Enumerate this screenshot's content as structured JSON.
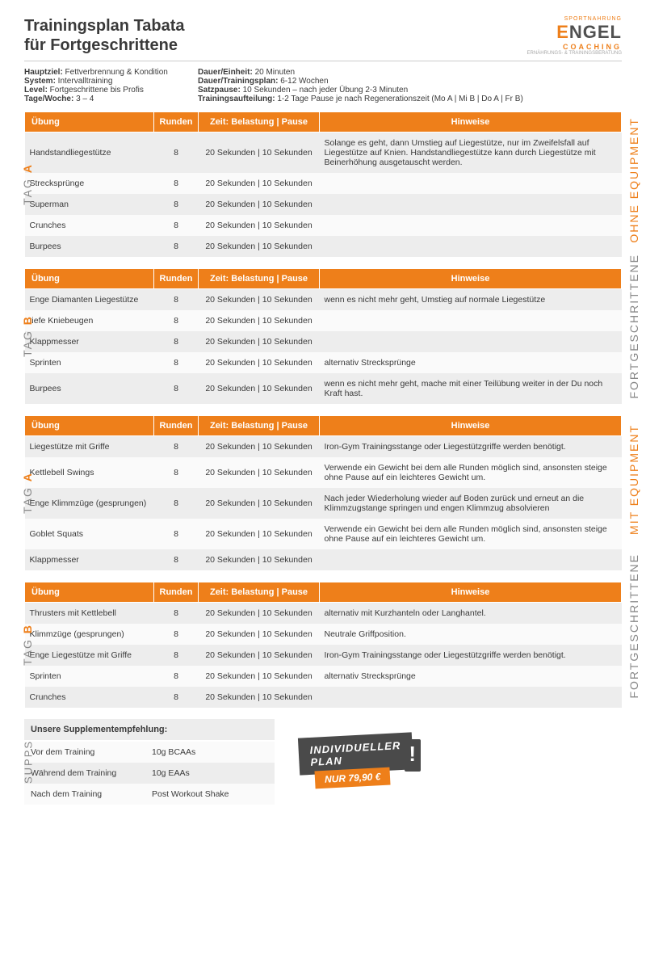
{
  "title_line1": "Trainingsplan Tabata",
  "title_line2": "für Fortgeschrittene",
  "logo": {
    "top": "SPORTNAHRUNG",
    "e": "E",
    "rest": "NGEL",
    "sub": "COACHING",
    "tag": "ERNÄHRUNGS- & TRAININGSBERATUNG"
  },
  "meta_left": [
    {
      "label": "Hauptziel:",
      "value": " Fettverbrennung & Kondition"
    },
    {
      "label": "System:",
      "value": " Intervalltraining"
    },
    {
      "label": "Level:",
      "value": " Fortgeschrittene bis Profis"
    },
    {
      "label": "Tage/Woche:",
      "value": " 3 – 4"
    }
  ],
  "meta_right": [
    {
      "label": "Dauer/Einheit:",
      "value": " 20 Minuten"
    },
    {
      "label": "Dauer/Trainingsplan:",
      "value": " 6-12 Wochen"
    },
    {
      "label": "Satzpause:",
      "value": " 10 Sekunden – nach jeder Übung 2-3 Minuten"
    },
    {
      "label": "Trainingsaufteilung:",
      "value": " 1-2 Tage Pause je nach Regenerationszeit  (Mo A | Mi B | Do A | Fr B)"
    }
  ],
  "columns": {
    "ex": "Übung",
    "rd": "Runden",
    "tm": "Zeit: Belastung | Pause",
    "hn": "Hinweise"
  },
  "side_labels": {
    "tag": "TAG",
    "fort": "FORTGESCHRITTENE",
    "ohne": "OHNE EQUIPMENT",
    "mit": "MIT EQUIPMENT",
    "supps": "SUPPS"
  },
  "tables": {
    "ohne_a": [
      {
        "ex": "Handstandliegestütze",
        "rd": "8",
        "tm": "20 Sekunden  | 10 Sekunden",
        "hn": "Solange es geht, dann Umstieg auf Liegestütze, nur im Zweifelsfall auf Liegestütze auf Knien. Handstandliegestütze kann durch Liegestütze mit Beinerhöhung ausgetauscht werden."
      },
      {
        "ex": "Strecksprünge",
        "rd": "8",
        "tm": "20 Sekunden  | 10 Sekunden",
        "hn": ""
      },
      {
        "ex": "Superman",
        "rd": "8",
        "tm": "20 Sekunden  | 10 Sekunden",
        "hn": ""
      },
      {
        "ex": "Crunches",
        "rd": "8",
        "tm": "20 Sekunden  | 10 Sekunden",
        "hn": ""
      },
      {
        "ex": "Burpees",
        "rd": "8",
        "tm": "20 Sekunden  | 10 Sekunden",
        "hn": ""
      }
    ],
    "ohne_b": [
      {
        "ex": "Enge Diamanten Liegestütze",
        "rd": "8",
        "tm": "20 Sekunden  | 10 Sekunden",
        "hn": "wenn es nicht mehr geht, Umstieg auf normale Liegestütze"
      },
      {
        "ex": "tiefe Kniebeugen",
        "rd": "8",
        "tm": "20 Sekunden  | 10 Sekunden",
        "hn": ""
      },
      {
        "ex": "Klappmesser",
        "rd": "8",
        "tm": "20 Sekunden  | 10 Sekunden",
        "hn": ""
      },
      {
        "ex": "Sprinten",
        "rd": "8",
        "tm": "20 Sekunden  | 10 Sekunden",
        "hn": "alternativ Strecksprünge"
      },
      {
        "ex": "Burpees",
        "rd": "8",
        "tm": "20 Sekunden  | 10 Sekunden",
        "hn": "wenn es nicht mehr geht, mache mit einer Teilübung weiter in der Du noch Kraft hast."
      }
    ],
    "mit_a": [
      {
        "ex": "Liegestütze mit Griffe",
        "rd": "8",
        "tm": "20 Sekunden  | 10 Sekunden",
        "hn": "Iron-Gym Trainingsstange oder Liegestützgriffe werden benötigt."
      },
      {
        "ex": "Kettlebell Swings",
        "rd": "8",
        "tm": "20 Sekunden  | 10 Sekunden",
        "hn": "Verwende ein Gewicht bei dem alle Runden möglich sind, ansonsten steige ohne Pause auf ein leichteres Gewicht um."
      },
      {
        "ex": "Enge Klimmzüge (gesprungen)",
        "rd": "8",
        "tm": "20 Sekunden  | 10 Sekunden",
        "hn": "Nach jeder Wiederholung wieder auf Boden zurück und erneut an die Klimmzugstange springen und engen Klimmzug absolvieren"
      },
      {
        "ex": "Goblet Squats",
        "rd": "8",
        "tm": "20 Sekunden  | 10 Sekunden",
        "hn": "Verwende ein Gewicht bei dem alle Runden möglich sind, ansonsten steige ohne Pause auf ein leichteres Gewicht um."
      },
      {
        "ex": "Klappmesser",
        "rd": "8",
        "tm": "20 Sekunden  | 10 Sekunden",
        "hn": ""
      }
    ],
    "mit_b": [
      {
        "ex": "Thrusters mit Kettlebell",
        "rd": "8",
        "tm": "20 Sekunden  | 10 Sekunden",
        "hn": "alternativ mit Kurzhanteln oder Langhantel."
      },
      {
        "ex": "Klimmzüge (gesprungen)",
        "rd": "8",
        "tm": "20 Sekunden  | 10 Sekunden",
        "hn": "Neutrale Griffposition."
      },
      {
        "ex": "Enge Liegestütze mit Griffe",
        "rd": "8",
        "tm": "20 Sekunden  | 10 Sekunden",
        "hn": "Iron-Gym Trainingsstange oder Liegestützgriffe werden benötigt."
      },
      {
        "ex": "Sprinten",
        "rd": "8",
        "tm": "20 Sekunden  | 10 Sekunden",
        "hn": "alternativ Strecksprünge"
      },
      {
        "ex": "Crunches",
        "rd": "8",
        "tm": "20 Sekunden  | 10 Sekunden",
        "hn": ""
      }
    ]
  },
  "supps": {
    "heading": "Unsere Supplementempfehlung:",
    "rows": [
      {
        "when": "Vor dem Training",
        "what": "10g BCAAs"
      },
      {
        "when": "Während dem Training",
        "what": "10g EAAs"
      },
      {
        "when": "Nach dem Training",
        "what": "Post Workout Shake"
      }
    ]
  },
  "badge": {
    "line1": "INDIVIDUELLER",
    "line2": "PLAN",
    "price": "NUR 79,90 €"
  }
}
